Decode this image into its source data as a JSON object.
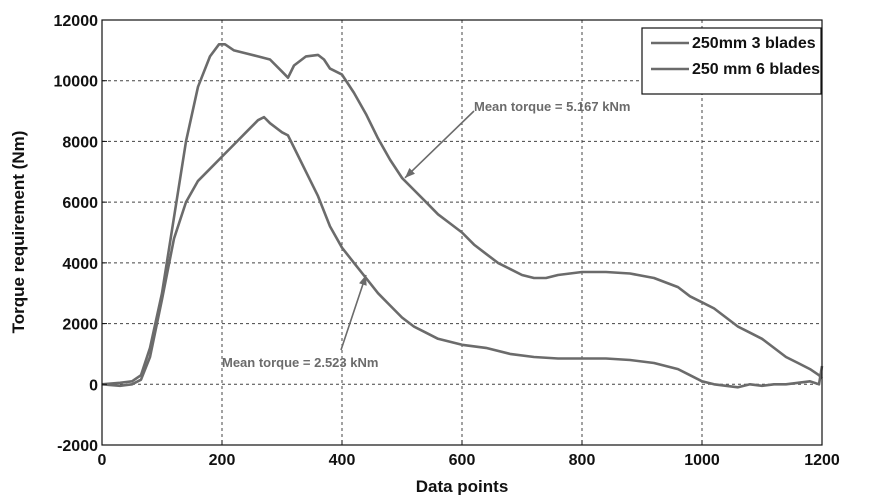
{
  "chart_data": {
    "type": "line",
    "xlabel": "Data points",
    "ylabel": "Torque requirement (Nm)",
    "xlim": [
      0,
      1200
    ],
    "ylim": [
      -2000,
      12000
    ],
    "xticks": [
      0,
      200,
      400,
      600,
      800,
      1000,
      1200
    ],
    "yticks": [
      -2000,
      0,
      2000,
      4000,
      6000,
      8000,
      10000,
      12000
    ],
    "grid": true,
    "legend_position": "top-right",
    "line_color": "#6b6b6b",
    "series": [
      {
        "name": "250mm 3 blades",
        "x": [
          0,
          30,
          50,
          65,
          80,
          100,
          120,
          140,
          160,
          180,
          195,
          205,
          220,
          240,
          260,
          280,
          300,
          310,
          320,
          340,
          360,
          370,
          380,
          400,
          420,
          440,
          460,
          480,
          500,
          520,
          540,
          560,
          580,
          600,
          620,
          640,
          660,
          680,
          700,
          720,
          740,
          760,
          800,
          840,
          880,
          920,
          960,
          980,
          1000,
          1020,
          1040,
          1060,
          1080,
          1100,
          1120,
          1140,
          1160,
          1180,
          1195,
          1200
        ],
        "y": [
          0,
          50,
          100,
          300,
          1200,
          3000,
          5500,
          8000,
          9800,
          10800,
          11200,
          11200,
          11000,
          10900,
          10800,
          10700,
          10300,
          10100,
          10500,
          10800,
          10850,
          10700,
          10400,
          10200,
          9600,
          8900,
          8100,
          7400,
          6800,
          6400,
          6000,
          5600,
          5300,
          5000,
          4600,
          4300,
          4000,
          3800,
          3600,
          3500,
          3500,
          3600,
          3700,
          3700,
          3650,
          3500,
          3200,
          2900,
          2700,
          2500,
          2200,
          1900,
          1700,
          1500,
          1200,
          900,
          700,
          500,
          300,
          200
        ]
      },
      {
        "name": "250 mm 6 blades",
        "x": [
          0,
          30,
          50,
          65,
          80,
          100,
          120,
          140,
          160,
          180,
          200,
          220,
          240,
          260,
          270,
          280,
          300,
          310,
          320,
          340,
          360,
          380,
          400,
          420,
          440,
          460,
          480,
          500,
          520,
          540,
          560,
          600,
          640,
          680,
          720,
          760,
          800,
          840,
          880,
          920,
          960,
          980,
          1000,
          1020,
          1040,
          1060,
          1080,
          1100,
          1120,
          1140,
          1160,
          1180,
          1195,
          1200
        ],
        "y": [
          0,
          -50,
          0,
          150,
          900,
          2800,
          4800,
          6000,
          6700,
          7100,
          7500,
          7900,
          8300,
          8700,
          8800,
          8600,
          8300,
          8200,
          7800,
          7000,
          6200,
          5200,
          4500,
          4000,
          3500,
          3000,
          2600,
          2200,
          1900,
          1700,
          1500,
          1300,
          1200,
          1000,
          900,
          850,
          850,
          850,
          800,
          700,
          500,
          300,
          100,
          0,
          -50,
          -100,
          0,
          -50,
          0,
          0,
          50,
          100,
          0,
          600
        ]
      }
    ],
    "annotations": [
      {
        "text": "Mean torque = 5.167 kNm",
        "series": 0,
        "point_x": 505,
        "point_y": 6800
      },
      {
        "text": "Mean torque = 2.523 kNm",
        "series": 1,
        "point_x": 440,
        "point_y": 3600
      }
    ]
  }
}
